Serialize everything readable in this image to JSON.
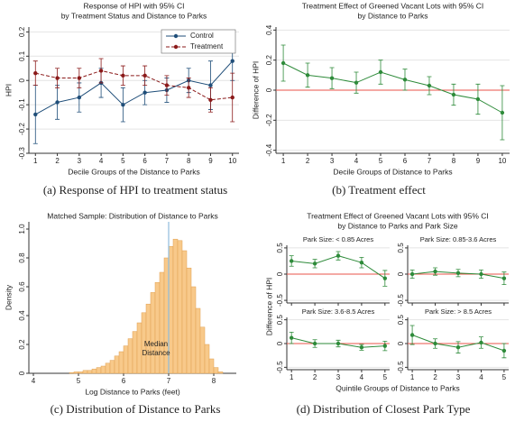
{
  "chart_data": [
    {
      "type": "line",
      "title": "Response of HPI with 95% CI",
      "subtitle": "by Treatment Status and Distance to Parks",
      "xlabel": "Decile Groups of the Distance to Parks",
      "ylabel": "HPI",
      "x": [
        1,
        2,
        3,
        4,
        5,
        6,
        7,
        8,
        9,
        10
      ],
      "xlim": [
        0.7,
        10.3
      ],
      "xticks": [
        1,
        2,
        3,
        4,
        5,
        6,
        7,
        8,
        9,
        10
      ],
      "ylim": [
        -0.3,
        0.22
      ],
      "yticks": [
        -0.3,
        -0.2,
        -0.1,
        0,
        0.1,
        0.2
      ],
      "grid": true,
      "legend": "upper right",
      "series": [
        {
          "name": "Control",
          "color": "#1f4e79",
          "dash": false,
          "values": [
            -0.14,
            -0.09,
            -0.07,
            -0.01,
            -0.1,
            -0.05,
            -0.04,
            0,
            -0.02,
            0.08
          ],
          "errors": [
            0.12,
            0.07,
            0.06,
            0.06,
            0.07,
            0.05,
            0.05,
            0.05,
            0.1,
            0.08
          ]
        },
        {
          "name": "Treatment",
          "color": "#8b1a1a",
          "dash": true,
          "values": [
            0.03,
            0.01,
            0.01,
            0.04,
            0.02,
            0.02,
            -0.02,
            -0.03,
            -0.08,
            -0.07
          ],
          "errors": [
            0.05,
            0.04,
            0.04,
            0.05,
            0.04,
            0.04,
            0.04,
            0.04,
            0.05,
            0.1
          ]
        }
      ]
    },
    {
      "type": "line",
      "title": "Treatment Effect of Greened Vacant Lots with 95% CI",
      "subtitle": "by Distance to Parks",
      "xlabel": "Decile Groups of Distance to Parks",
      "ylabel": "Difference of HPI",
      "x": [
        1,
        2,
        3,
        4,
        5,
        6,
        7,
        8,
        9,
        10
      ],
      "xlim": [
        0.7,
        10.3
      ],
      "xticks": [
        1,
        2,
        3,
        4,
        5,
        6,
        7,
        8,
        9,
        10
      ],
      "ylim": [
        -0.42,
        0.42
      ],
      "yticks": [
        -0.4,
        -0.2,
        0,
        0.2,
        0.4
      ],
      "grid": true,
      "hline": 0,
      "hline_color": "#e8534a",
      "color": "#2e8b3a",
      "values": [
        0.18,
        0.1,
        0.08,
        0.05,
        0.12,
        0.07,
        0.03,
        -0.03,
        -0.06,
        -0.15
      ],
      "errors": [
        0.12,
        0.08,
        0.07,
        0.07,
        0.08,
        0.07,
        0.06,
        0.07,
        0.1,
        0.18
      ]
    },
    {
      "type": "histogram",
      "title": "Matched Sample:  Distribution of Distance to Parks",
      "xlabel": "Log Distance to Parks (feet)",
      "ylabel": "Density",
      "bins": [
        4.8,
        4.9,
        5.0,
        5.1,
        5.2,
        5.3,
        5.4,
        5.5,
        5.6,
        5.7,
        5.8,
        5.9,
        6.0,
        6.1,
        6.2,
        6.3,
        6.4,
        6.5,
        6.6,
        6.7,
        6.8,
        6.9,
        7.0,
        7.1,
        7.2,
        7.3,
        7.4,
        7.5,
        7.6,
        7.7,
        7.8,
        7.9,
        8.0,
        8.1,
        8.2
      ],
      "values": [
        0.005,
        0.01,
        0.01,
        0.02,
        0.02,
        0.03,
        0.04,
        0.05,
        0.07,
        0.09,
        0.12,
        0.15,
        0.19,
        0.24,
        0.29,
        0.35,
        0.42,
        0.48,
        0.56,
        0.63,
        0.7,
        0.8,
        0.88,
        0.93,
        0.92,
        0.85,
        0.73,
        0.6,
        0.45,
        0.32,
        0.2,
        0.1,
        0.04,
        0.01
      ],
      "xlim": [
        3.9,
        8.5
      ],
      "xticks": [
        4,
        5,
        6,
        7,
        8
      ],
      "ylim": [
        0,
        1.05
      ],
      "yticks": [
        0,
        0.2,
        0.4,
        0.6,
        0.8,
        {
          "value": 1,
          "label": "1.0"
        }
      ],
      "color": "#f8c98a",
      "edgecolor": "#e0a050",
      "median": 7,
      "median_color": "#8fbcdc",
      "annotation_lines": [
        "Median",
        "Distance"
      ]
    },
    {
      "type": "line",
      "title": "Treatment Effect of Greened Vacant Lots with 95% CI",
      "subtitle": "by Distance to Parks and Park Size",
      "xlabel": "Quintile Groups of Distance to Parks",
      "ylabel": "Difference of HPI",
      "x": [
        1,
        2,
        3,
        4,
        5
      ],
      "xlim": [
        0.8,
        5.2
      ],
      "xticks": [
        1,
        2,
        3,
        4,
        5
      ],
      "ylim": [
        -0.55,
        0.55
      ],
      "yticks": [
        -0.5,
        0,
        0.5
      ],
      "grid": true,
      "hline": 0,
      "hline_color": "#e8534a",
      "color": "#2e8b3a",
      "panels": [
        {
          "title": "Park Size: < 0.85 Acres",
          "values": [
            0.25,
            0.2,
            0.35,
            0.22,
            -0.08
          ],
          "errors": [
            0.1,
            0.08,
            0.08,
            0.1,
            0.15
          ]
        },
        {
          "title": "Park Size: 0.85-3.6 Acres",
          "values": [
            0,
            0.05,
            0.02,
            0,
            -0.08
          ],
          "errors": [
            0.08,
            0.07,
            0.07,
            0.08,
            0.12
          ]
        },
        {
          "title": "Park Size: 3.6-8.5 Acres",
          "values": [
            0.12,
            0,
            0,
            -0.08,
            -0.05
          ],
          "errors": [
            0.12,
            0.08,
            0.07,
            0.06,
            0.1
          ]
        },
        {
          "title": "Park Size: > 8.5 Acres",
          "values": [
            0.18,
            0,
            -0.08,
            0.02,
            -0.15
          ],
          "errors": [
            0.2,
            0.1,
            0.12,
            0.12,
            0.15
          ]
        }
      ]
    }
  ],
  "captions": [
    "(a)  Response of HPI to treatment status",
    "(b)  Treatment effect",
    "(c)  Distribution of Distance to Parks",
    "(d)  Distribution of Closest Park Type"
  ]
}
